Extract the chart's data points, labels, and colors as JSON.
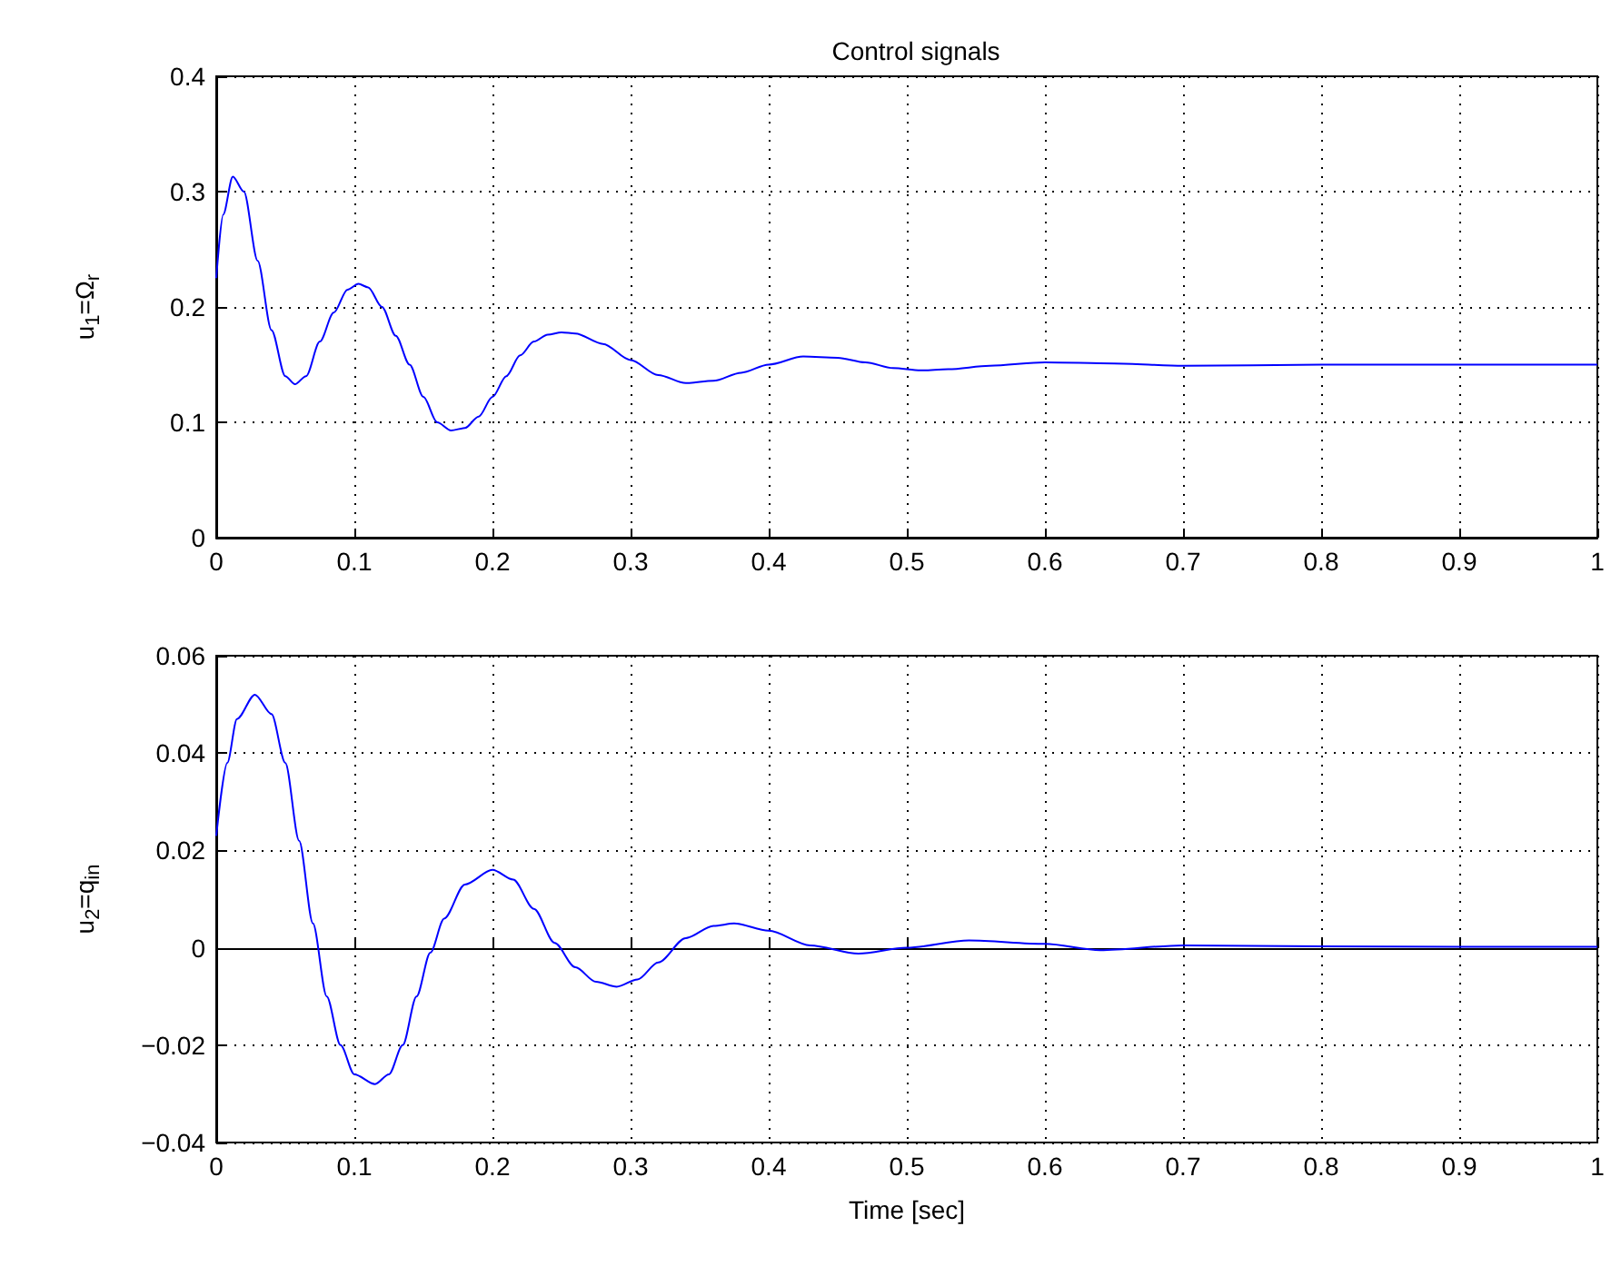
{
  "chart_data": [
    {
      "type": "line",
      "title": "Control signals",
      "ylabel": "u$_{1}$=Ω$_{r}$",
      "color": "#0000ff",
      "grid": true,
      "line_style": "solid",
      "x": [
        0,
        0.005,
        0.012,
        0.02,
        0.03,
        0.04,
        0.05,
        0.057,
        0.065,
        0.075,
        0.085,
        0.095,
        0.103,
        0.11,
        0.12,
        0.13,
        0.14,
        0.15,
        0.16,
        0.17,
        0.18,
        0.19,
        0.2,
        0.21,
        0.22,
        0.23,
        0.24,
        0.25,
        0.26,
        0.28,
        0.3,
        0.32,
        0.34,
        0.36,
        0.38,
        0.4,
        0.425,
        0.45,
        0.47,
        0.49,
        0.51,
        0.53,
        0.56,
        0.6,
        0.65,
        0.7,
        0.8,
        0.9,
        1
      ],
      "values": [
        0.225,
        0.28,
        0.313,
        0.3,
        0.24,
        0.18,
        0.14,
        0.133,
        0.14,
        0.17,
        0.195,
        0.215,
        0.22,
        0.217,
        0.2,
        0.175,
        0.15,
        0.122,
        0.1,
        0.093,
        0.095,
        0.105,
        0.122,
        0.14,
        0.158,
        0.17,
        0.176,
        0.178,
        0.177,
        0.168,
        0.154,
        0.141,
        0.134,
        0.136,
        0.143,
        0.15,
        0.157,
        0.156,
        0.152,
        0.147,
        0.145,
        0.146,
        0.149,
        0.152,
        0.151,
        0.149,
        0.15,
        0.15,
        0.15
      ],
      "xlim": [
        0,
        1
      ],
      "xticks": [
        0,
        0.1,
        0.2,
        0.3,
        0.4,
        0.5,
        0.6,
        0.7,
        0.8,
        0.9,
        1
      ],
      "ylim": [
        0,
        0.4
      ],
      "yticks": [
        0,
        0.1,
        0.2,
        0.3,
        0.4
      ]
    },
    {
      "type": "line",
      "xlabel": "Time [sec]",
      "ylabel": "u$_{2}$=q$_{in}$",
      "color": "#0000ff",
      "grid": true,
      "line_style": "solid",
      "x": [
        0,
        0.008,
        0.015,
        0.028,
        0.04,
        0.05,
        0.06,
        0.07,
        0.08,
        0.09,
        0.1,
        0.115,
        0.125,
        0.135,
        0.145,
        0.155,
        0.165,
        0.18,
        0.2,
        0.215,
        0.23,
        0.245,
        0.26,
        0.275,
        0.29,
        0.305,
        0.32,
        0.34,
        0.36,
        0.375,
        0.4,
        0.43,
        0.465,
        0.5,
        0.545,
        0.6,
        0.64,
        0.7,
        0.8,
        0.9,
        1
      ],
      "values": [
        0.023,
        0.038,
        0.047,
        0.052,
        0.048,
        0.038,
        0.022,
        0.005,
        -0.01,
        -0.02,
        -0.026,
        -0.028,
        -0.026,
        -0.02,
        -0.01,
        -0.001,
        0.006,
        0.013,
        0.016,
        0.014,
        0.008,
        0.001,
        -0.004,
        -0.007,
        -0.008,
        -0.0065,
        -0.003,
        0.002,
        0.0045,
        0.005,
        0.0035,
        0.0005,
        -0.0012,
        0,
        0.0015,
        0.0008,
        -0.0005,
        0.0005,
        0.0003,
        0.0002,
        0.0002
      ],
      "xlim": [
        0,
        1
      ],
      "xticks": [
        0,
        0.1,
        0.2,
        0.3,
        0.4,
        0.5,
        0.6,
        0.7,
        0.8,
        0.9,
        1
      ],
      "ylim": [
        -0.04,
        0.06
      ],
      "yticks": [
        -0.04,
        -0.02,
        0,
        0.02,
        0.04,
        0.06
      ]
    }
  ]
}
